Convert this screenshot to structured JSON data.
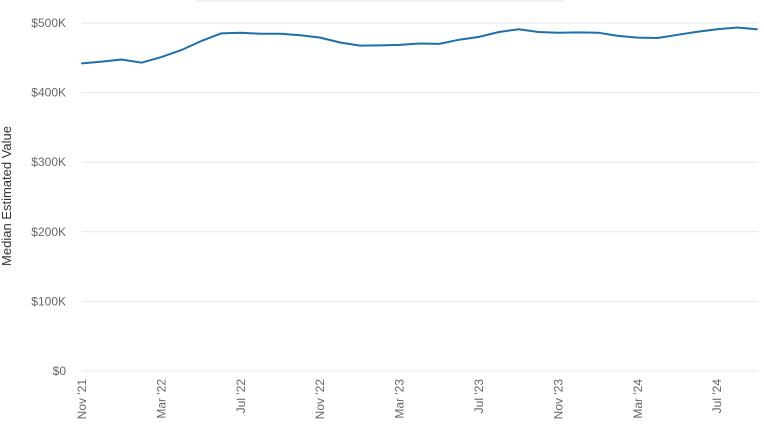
{
  "chart_data": {
    "type": "line",
    "title": "",
    "xlabel": "",
    "ylabel": "Median Estimated Value",
    "ylim": [
      0,
      500000
    ],
    "yticks": [
      {
        "value": 0,
        "label": "$0"
      },
      {
        "value": 100000,
        "label": "$100K"
      },
      {
        "value": 200000,
        "label": "$200K"
      },
      {
        "value": 300000,
        "label": "$300K"
      },
      {
        "value": 400000,
        "label": "$400K"
      },
      {
        "value": 500000,
        "label": "$500K"
      }
    ],
    "xticks": [
      {
        "month": "2021-11",
        "label": "Nov '21"
      },
      {
        "month": "2022-03",
        "label": "Mar '22"
      },
      {
        "month": "2022-07",
        "label": "Jul '22"
      },
      {
        "month": "2022-11",
        "label": "Nov '22"
      },
      {
        "month": "2023-03",
        "label": "Mar '23"
      },
      {
        "month": "2023-07",
        "label": "Jul '23"
      },
      {
        "month": "2023-11",
        "label": "Nov '23"
      },
      {
        "month": "2024-03",
        "label": "Mar '24"
      },
      {
        "month": "2024-07",
        "label": "Jul '24"
      }
    ],
    "grid": true,
    "legend": "none",
    "series": [
      {
        "color": "#1f6fa8",
        "x": [
          "2021-11",
          "2021-12",
          "2022-01",
          "2022-02",
          "2022-03",
          "2022-04",
          "2022-05",
          "2022-06",
          "2022-07",
          "2022-08",
          "2022-09",
          "2022-10",
          "2022-11",
          "2022-12",
          "2023-01",
          "2023-02",
          "2023-03",
          "2023-04",
          "2023-05",
          "2023-06",
          "2023-07",
          "2023-08",
          "2023-09",
          "2023-10",
          "2023-11",
          "2023-12",
          "2024-01",
          "2024-02",
          "2024-03",
          "2024-04",
          "2024-05",
          "2024-06",
          "2024-07",
          "2024-08",
          "2024-09"
        ],
        "values": [
          442000,
          444500,
          447500,
          443000,
          451000,
          461000,
          474000,
          485000,
          486000,
          484500,
          484500,
          482500,
          479000,
          472000,
          467500,
          467800,
          468500,
          470500,
          470000,
          476000,
          480000,
          487000,
          491000,
          487000,
          486000,
          486500,
          486000,
          481500,
          479000,
          478500,
          483000,
          487500,
          491000,
          493500,
          491000
        ]
      }
    ]
  }
}
